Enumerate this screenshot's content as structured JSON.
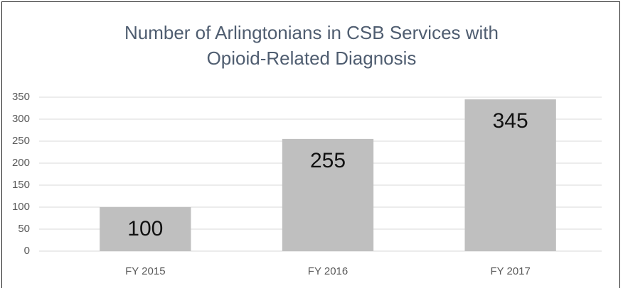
{
  "chart_data": {
    "type": "bar",
    "title": "Number of Arlingtonians in CSB Services with Opioid-Related Diagnosis",
    "categories": [
      "FY 2015",
      "FY 2016",
      "FY 2017"
    ],
    "values": [
      100,
      255,
      345
    ],
    "color": "#bfbfbf",
    "ylim": [
      0,
      350
    ],
    "yticks": [
      0,
      50,
      100,
      150,
      200,
      250,
      300,
      350
    ],
    "grid": true
  }
}
